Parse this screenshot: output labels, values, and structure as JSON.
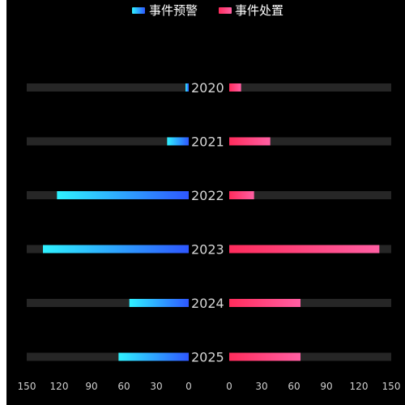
{
  "chart_data": {
    "type": "bar",
    "orientation": "horizontal-butterfly",
    "categories": [
      "2020",
      "2021",
      "2022",
      "2023",
      "2024",
      "2025"
    ],
    "series": [
      {
        "name": "事件预警",
        "side": "left",
        "values": [
          3,
          20,
          122,
          135,
          55,
          65
        ]
      },
      {
        "name": "事件处置",
        "side": "right",
        "values": [
          11,
          38,
          23,
          139,
          66,
          66
        ]
      }
    ],
    "xlim": [
      0,
      150
    ],
    "left_ticks": [
      "150",
      "120",
      "90",
      "60",
      "30",
      "0"
    ],
    "right_ticks": [
      "0",
      "30",
      "60",
      "90",
      "120",
      "150"
    ],
    "legend_position": "top-center",
    "grid": false
  },
  "colors": {
    "background": "#000000",
    "track": "#262626",
    "left_gradient": [
      "#2ff2ff",
      "#2e57ff"
    ],
    "right_gradient": [
      "#ff2c5c",
      "#ff5fa3"
    ]
  }
}
